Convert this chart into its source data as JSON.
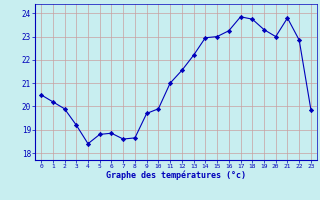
{
  "x": [
    0,
    1,
    2,
    3,
    4,
    5,
    6,
    7,
    8,
    9,
    10,
    11,
    12,
    13,
    14,
    15,
    16,
    17,
    18,
    19,
    20,
    21,
    22,
    23
  ],
  "y": [
    20.5,
    20.2,
    19.9,
    19.2,
    18.4,
    18.8,
    18.85,
    18.6,
    18.65,
    19.7,
    19.9,
    21.0,
    21.55,
    22.2,
    22.95,
    23.0,
    23.25,
    23.85,
    23.75,
    23.3,
    23.0,
    23.8,
    22.85,
    19.85
  ],
  "line_color": "#0000bb",
  "marker": "D",
  "marker_size": 2.2,
  "bg_color": "#c8eef0",
  "grid_color": "#c8a0a0",
  "xlabel": "Graphe des températures (°c)",
  "xlabel_color": "#0000bb",
  "ylabel_ticks": [
    18,
    19,
    20,
    21,
    22,
    23,
    24
  ],
  "xtick_labels": [
    "0",
    "1",
    "2",
    "3",
    "4",
    "5",
    "6",
    "7",
    "8",
    "9",
    "10",
    "11",
    "12",
    "13",
    "14",
    "15",
    "16",
    "17",
    "18",
    "19",
    "20",
    "21",
    "22",
    "23"
  ],
  "xlim": [
    -0.5,
    23.5
  ],
  "ylim": [
    17.7,
    24.4
  ],
  "tick_color": "#0000bb",
  "spine_color": "#0000bb",
  "fig_bg": "#c8eef0"
}
